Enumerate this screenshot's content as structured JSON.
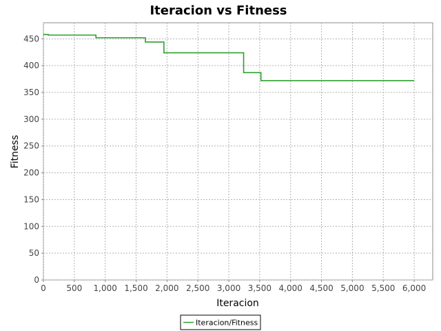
{
  "chart_data": {
    "type": "line",
    "title": "Iteracion vs Fitness",
    "xlabel": "Iteracion",
    "ylabel": "Fitness",
    "xlim": [
      0,
      6300
    ],
    "ylim": [
      0,
      480
    ],
    "x_ticks": [
      0,
      500,
      1000,
      1500,
      2000,
      2500,
      3000,
      3500,
      4000,
      4500,
      5000,
      5500,
      6000
    ],
    "x_tick_labels": [
      "0",
      "500",
      "1,000",
      "1,500",
      "2,000",
      "2,500",
      "3,000",
      "3,500",
      "4,000",
      "4,500",
      "5,000",
      "5,500",
      "6,000"
    ],
    "y_ticks": [
      0,
      50,
      100,
      150,
      200,
      250,
      300,
      350,
      400,
      450
    ],
    "y_tick_labels": [
      "0",
      "50",
      "100",
      "150",
      "200",
      "250",
      "300",
      "350",
      "400",
      "450"
    ],
    "grid": true,
    "legend_position": "bottom-center",
    "series": [
      {
        "name": "Iteracion/Fitness",
        "color": "#2ca02c",
        "step": true,
        "x": [
          0,
          80,
          850,
          1650,
          1950,
          3240,
          3520,
          6000
        ],
        "y": [
          458,
          457,
          452,
          444,
          424,
          387,
          372,
          372
        ]
      }
    ]
  }
}
